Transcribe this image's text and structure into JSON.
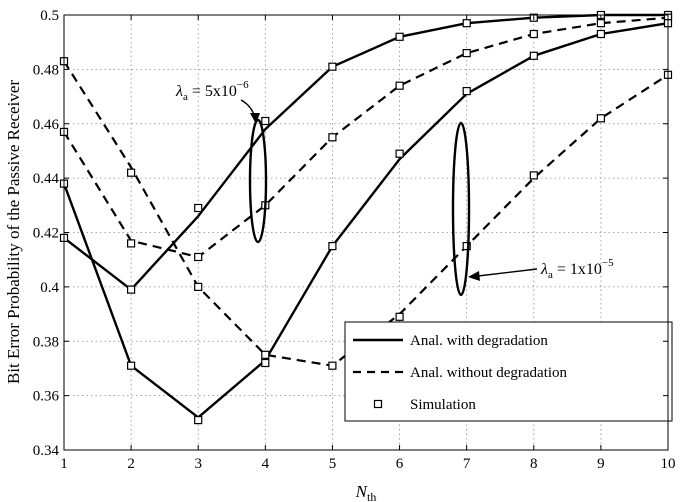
{
  "chart_data": {
    "type": "line",
    "xlabel": {
      "main": "N",
      "sub": "th"
    },
    "ylabel": "Bit Error Probability of the Passive  Receiver",
    "xlim": [
      1,
      10
    ],
    "ylim": [
      0.34,
      0.5
    ],
    "xticks": [
      "1",
      "2",
      "3",
      "4",
      "5",
      "6",
      "7",
      "8",
      "9",
      "10"
    ],
    "yticks": [
      "0.34",
      "0.36",
      "0.38",
      "0.4",
      "0.42",
      "0.44",
      "0.46",
      "0.48",
      "0.5"
    ],
    "grid": true,
    "legend_position": "bottom-right",
    "legend": [
      {
        "label": "Anal. with degradation",
        "style": "solid"
      },
      {
        "label": "Anal. without degradation",
        "style": "dashed"
      },
      {
        "label": "Simulation",
        "style": "square-marker"
      }
    ],
    "annotations": [
      {
        "id": "lambda-5e-6",
        "prefix": "λ",
        "sub": "a",
        "mid": " = 5x10",
        "sup": "−6"
      },
      {
        "id": "lambda-1e-5",
        "prefix": "λ",
        "sub": "a",
        "mid": " = 1x10",
        "sup": "−5"
      }
    ],
    "x": [
      1,
      2,
      3,
      4,
      5,
      6,
      7,
      8,
      9,
      10
    ],
    "series": [
      {
        "style": "solid",
        "group": "lambda-5e-6",
        "values": [
          0.418,
          0.399,
          0.426,
          0.458,
          0.481,
          0.492,
          0.497,
          0.499,
          0.5,
          0.5
        ]
      },
      {
        "style": "dashed",
        "group": "lambda-5e-6",
        "values": [
          0.457,
          0.417,
          0.411,
          0.43,
          0.455,
          0.474,
          0.486,
          0.493,
          0.497,
          0.499
        ]
      },
      {
        "style": "solid",
        "group": "lambda-1e-5",
        "values": [
          0.438,
          0.371,
          0.352,
          0.373,
          0.415,
          0.447,
          0.471,
          0.485,
          0.493,
          0.497
        ]
      },
      {
        "style": "dashed",
        "group": "lambda-1e-5",
        "values": [
          0.483,
          0.444,
          0.4,
          0.375,
          0.371,
          0.39,
          0.415,
          0.44,
          0.462,
          0.478
        ]
      }
    ],
    "simulation": [
      {
        "group": "lambda-5e-6",
        "x": [
          1,
          2,
          3,
          4,
          5,
          6,
          7,
          8,
          9,
          10
        ],
        "y": [
          0.418,
          0.399,
          0.429,
          0.461,
          0.481,
          0.492,
          0.497,
          0.499,
          0.5,
          0.5
        ]
      },
      {
        "group": "lambda-5e-6",
        "x": [
          1,
          2,
          3,
          4,
          5,
          6,
          7,
          8,
          9,
          10
        ],
        "y": [
          0.457,
          0.416,
          0.411,
          0.43,
          0.455,
          0.474,
          0.486,
          0.493,
          0.497,
          0.499
        ]
      },
      {
        "group": "lambda-1e-5",
        "x": [
          1,
          2,
          3,
          4,
          5,
          6,
          7,
          8,
          9,
          10
        ],
        "y": [
          0.438,
          0.371,
          0.351,
          0.372,
          0.415,
          0.449,
          0.472,
          0.485,
          0.493,
          0.497
        ]
      },
      {
        "group": "lambda-1e-5",
        "x": [
          1,
          2,
          3,
          4,
          5,
          6,
          7,
          8,
          9,
          10
        ],
        "y": [
          0.483,
          0.442,
          0.4,
          0.375,
          0.371,
          0.389,
          0.415,
          0.441,
          0.462,
          0.478
        ]
      }
    ]
  }
}
